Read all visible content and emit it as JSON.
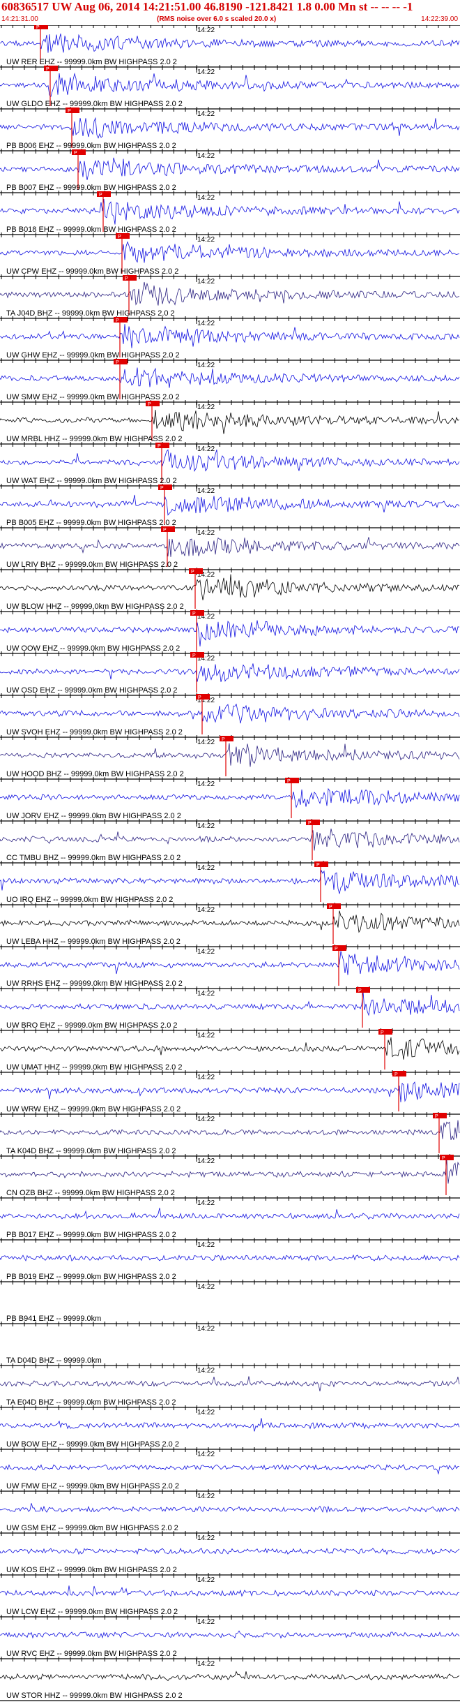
{
  "header": {
    "title": "60836517 UW Aug 06, 2014 14:21:51.00   46.8190 -121.8421  1.8 0.00 Mn st -- -- --  -1",
    "start_time": "14:21:31.00",
    "noise_note": "(RMS noise over 6.0 s scaled 20.0 x)",
    "end_time": "14:22:39.00"
  },
  "colors": {
    "header_red": "#d40000",
    "trace_blue": "#1010e0",
    "trace_navy": "#2a2080",
    "trace_black": "#000000",
    "pick_red": "#e00000"
  },
  "minute_label": "14:22",
  "traces": [
    {
      "label": "UW RER EHZ -- 99999.0km BW  HIGHPASS  2.0  2",
      "color": "blue",
      "pick": "P"
    },
    {
      "label": "UW GLDO EHZ -- 99999.0km BW  HIGHPASS  2.0  2",
      "color": "blue",
      "pick": "P"
    },
    {
      "label": "PB B006 EHZ -- 99999.0km BW  HIGHPASS  2.0  2",
      "color": "blue",
      "pick": "P"
    },
    {
      "label": "PB B007 EHZ -- 99999.0km BW  HIGHPASS  2.0  2",
      "color": "blue",
      "pick": "P"
    },
    {
      "label": "PB B018 EHZ -- 99999.0km BW  HIGHPASS  2.0  2",
      "color": "blue",
      "pick": "P"
    },
    {
      "label": "UW CPW EHZ -- 99999.0km BW  HIGHPASS  2.0  2",
      "color": "blue",
      "pick": "P"
    },
    {
      "label": "TA J04D BHZ -- 99999.0km BW  HIGHPASS  2.0  2",
      "color": "navy",
      "pick": "P"
    },
    {
      "label": "UW GHW EHZ -- 99999.0km BW  HIGHPASS  2.0  2",
      "color": "blue",
      "pick": "P"
    },
    {
      "label": "UW SMW EHZ -- 99999.0km BW  HIGHPASS  2.0  2",
      "color": "blue",
      "pick": "P"
    },
    {
      "label": "UW MRBL HHZ -- 99999.0km BW  HIGHPASS  2.0  2",
      "color": "black",
      "pick": "P"
    },
    {
      "label": "UW WAT EHZ -- 99999.0km BW  HIGHPASS  2.0  2",
      "color": "blue",
      "pick": "P"
    },
    {
      "label": "PB B005 EHZ -- 99999.0km BW  HIGHPASS  2.0  2",
      "color": "blue",
      "pick": "P"
    },
    {
      "label": "UW LRIV BHZ -- 99999.0km BW  HIGHPASS  2.0  2",
      "color": "navy",
      "pick": "P"
    },
    {
      "label": "UW BLOW HHZ -- 99999.0km BW  HIGHPASS  2.0  2",
      "color": "black",
      "pick": "P"
    },
    {
      "label": "UW OOW EHZ -- 99999.0km BW  HIGHPASS  2.0  2",
      "color": "blue",
      "pick": "P"
    },
    {
      "label": "UW OSD EHZ -- 99999.0km BW  HIGHPASS  2.0  2",
      "color": "blue",
      "pick": "P"
    },
    {
      "label": "UW SVOH EHZ -- 99999.0km BW  HIGHPASS  2.0  2",
      "color": "blue",
      "pick": "P"
    },
    {
      "label": "UW HOOD BHZ -- 99999.0km BW  HIGHPASS  2.0  2",
      "color": "navy",
      "pick": "P"
    },
    {
      "label": "UW JORV EHZ -- 99999.0km BW  HIGHPASS  2.0  2",
      "color": "blue",
      "pick": "P"
    },
    {
      "label": "CC TMBU BHZ -- 99999.0km BW  HIGHPASS  2.0  2",
      "color": "navy",
      "pick": "P"
    },
    {
      "label": "UO IRQ EHZ -- 99999.0km BW  HIGHPASS  2.0  2",
      "color": "blue",
      "pick": "P"
    },
    {
      "label": "UW LEBA HHZ -- 99999.0km BW  HIGHPASS  2.0  2",
      "color": "black",
      "pick": "P"
    },
    {
      "label": "UW RRHS EHZ -- 99999.0km BW  HIGHPASS  2.0  2",
      "color": "blue",
      "pick": "P"
    },
    {
      "label": "UW BRO EHZ -- 99999.0km BW  HIGHPASS  2.0  2",
      "color": "blue",
      "pick": "P"
    },
    {
      "label": "UW UMAT HHZ -- 99999.0km BW  HIGHPASS  2.0  2",
      "color": "black",
      "pick": "P"
    },
    {
      "label": "UW WRW EHZ -- 99999.0km BW  HIGHPASS  2.0  2",
      "color": "blue",
      "pick": "P"
    },
    {
      "label": "TA K04D BHZ -- 99999.0km BW  HIGHPASS  2.0  2",
      "color": "navy",
      "pick": "P"
    },
    {
      "label": "CN OZB BHZ -- 99999.0km BW  HIGHPASS  2.0  2",
      "color": "navy",
      "pick": "P"
    },
    {
      "label": "PB B017 EHZ -- 99999.0km BW  HIGHPASS  2.0  2",
      "color": "blue",
      "pick": ""
    },
    {
      "label": "PB B019 EHZ -- 99999.0km BW  HIGHPASS  2.0  2",
      "color": "blue",
      "pick": ""
    },
    {
      "label": "PB B941 EHZ -- 99999.0km",
      "color": "none",
      "pick": ""
    },
    {
      "label": "TA D04D BHZ -- 99999.0km",
      "color": "none",
      "pick": ""
    },
    {
      "label": "TA E04D BHZ -- 99999.0km BW  HIGHPASS  2.0  2",
      "color": "navy",
      "pick": ""
    },
    {
      "label": "UW BOW EHZ -- 99999.0km BW  HIGHPASS  2.0  2",
      "color": "blue",
      "pick": ""
    },
    {
      "label": "UW FMW EHZ -- 99999.0km BW  HIGHPASS  2.0  2",
      "color": "blue",
      "pick": ""
    },
    {
      "label": "UW GSM EHZ -- 99999.0km BW  HIGHPASS  2.0  2",
      "color": "blue",
      "pick": ""
    },
    {
      "label": "UW KOS EHZ -- 99999.0km BW  HIGHPASS  2.0  2",
      "color": "blue",
      "pick": ""
    },
    {
      "label": "UW LCW EHZ -- 99999.0km BW  HIGHPASS  2.0  2",
      "color": "blue",
      "pick": ""
    },
    {
      "label": "UW RVC EHZ -- 99999.0km BW  HIGHPASS  2.0  2",
      "color": "blue",
      "pick": ""
    },
    {
      "label": "UW STOR HHZ -- 99999.0km BW  HIGHPASS  2.0  2",
      "color": "black",
      "pick": ""
    }
  ]
}
